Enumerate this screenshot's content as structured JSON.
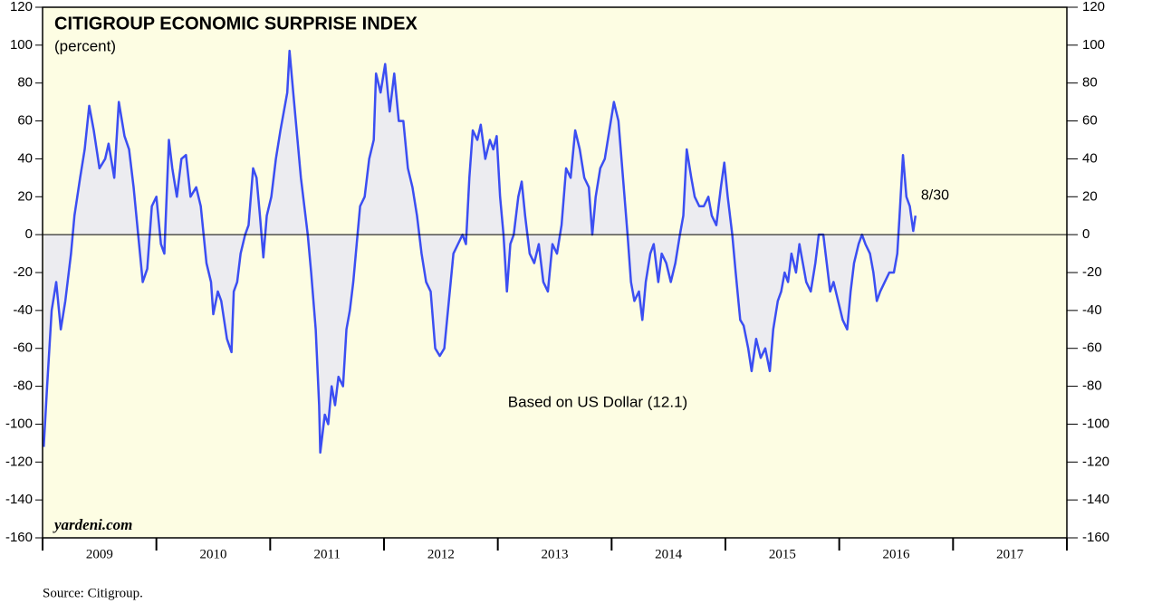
{
  "chart_data": {
    "type": "area",
    "title": "CITIGROUP ECONOMIC SURPRISE INDEX",
    "subtitle": "(percent)",
    "note": "Based on US Dollar (12.1)",
    "watermark": "yardeni.com",
    "source": "Source: Citigroup.",
    "end_label": "8/30",
    "color": "#3b4ef2",
    "fill_color": "#ececf0",
    "background": "#fdfde3",
    "xlim": [
      2009,
      2018
    ],
    "xticks": [
      2009,
      2010,
      2011,
      2012,
      2013,
      2014,
      2015,
      2016,
      2017
    ],
    "ylim": [
      -160,
      120
    ],
    "yticks": [
      120,
      100,
      80,
      60,
      40,
      20,
      0,
      -20,
      -40,
      -60,
      -80,
      -100,
      -120,
      -140,
      -160
    ],
    "x": [
      2009.01,
      2009.04,
      2009.08,
      2009.12,
      2009.16,
      2009.2,
      2009.25,
      2009.28,
      2009.33,
      2009.37,
      2009.41,
      2009.45,
      2009.5,
      2009.55,
      2009.58,
      2009.63,
      2009.67,
      2009.72,
      2009.76,
      2009.8,
      2009.84,
      2009.88,
      2009.92,
      2009.96,
      2010.0,
      2010.04,
      2010.07,
      2010.11,
      2010.14,
      2010.18,
      2010.22,
      2010.26,
      2010.3,
      2010.35,
      2010.39,
      2010.44,
      2010.48,
      2010.5,
      2010.54,
      2010.57,
      2010.62,
      2010.66,
      2010.68,
      2010.71,
      2010.74,
      2010.78,
      2010.81,
      2010.85,
      2010.88,
      2010.91,
      2010.94,
      2010.97,
      2011.01,
      2011.05,
      2011.09,
      2011.12,
      2011.15,
      2011.17,
      2011.21,
      2011.24,
      2011.27,
      2011.3,
      2011.33,
      2011.36,
      2011.4,
      2011.43,
      2011.44,
      2011.48,
      2011.51,
      2011.54,
      2011.57,
      2011.6,
      2011.64,
      2011.67,
      2011.7,
      2011.73,
      2011.76,
      2011.79,
      2011.83,
      2011.87,
      2011.91,
      2011.93,
      2011.97,
      2012.01,
      2012.05,
      2012.09,
      2012.13,
      2012.17,
      2012.21,
      2012.25,
      2012.29,
      2012.33,
      2012.37,
      2012.41,
      2012.45,
      2012.49,
      2012.53,
      2012.57,
      2012.61,
      2012.65,
      2012.69,
      2012.72,
      2012.75,
      2012.78,
      2012.82,
      2012.85,
      2012.89,
      2012.93,
      2012.96,
      2012.99,
      2013.02,
      2013.05,
      2013.08,
      2013.11,
      2013.14,
      2013.18,
      2013.21,
      2013.24,
      2013.28,
      2013.32,
      2013.36,
      2013.4,
      2013.44,
      2013.48,
      2013.52,
      2013.56,
      2013.6,
      2013.64,
      2013.68,
      2013.72,
      2013.76,
      2013.8,
      2013.83,
      2013.86,
      2013.9,
      2013.94,
      2013.98,
      2014.02,
      2014.06,
      2014.1,
      2014.14,
      2014.17,
      2014.2,
      2014.24,
      2014.27,
      2014.3,
      2014.34,
      2014.37,
      2014.41,
      2014.44,
      2014.48,
      2014.52,
      2014.56,
      2014.6,
      2014.63,
      2014.66,
      2014.7,
      2014.73,
      2014.77,
      2014.81,
      2014.85,
      2014.88,
      2014.92,
      2014.96,
      2014.99,
      2015.02,
      2015.06,
      2015.09,
      2015.13,
      2015.16,
      2015.2,
      2015.23,
      2015.27,
      2015.31,
      2015.35,
      2015.39,
      2015.42,
      2015.46,
      2015.49,
      2015.52,
      2015.55,
      2015.58,
      2015.62,
      2015.65,
      2015.68,
      2015.71,
      2015.75,
      2015.79,
      2015.82,
      2015.86,
      2015.89,
      2015.92,
      2015.95,
      2015.99,
      2016.03,
      2016.07,
      2016.1,
      2016.13,
      2016.17,
      2016.2,
      2016.23,
      2016.27,
      2016.3,
      2016.33,
      2016.36,
      2016.4,
      2016.44,
      2016.48,
      2016.51,
      2016.53,
      2016.56,
      2016.59,
      2016.62,
      2016.65,
      2016.67
    ],
    "values": [
      -112,
      -80,
      -40,
      -25,
      -50,
      -35,
      -10,
      10,
      30,
      45,
      68,
      55,
      35,
      40,
      48,
      30,
      70,
      52,
      45,
      25,
      0,
      -25,
      -18,
      15,
      20,
      -5,
      -10,
      50,
      35,
      20,
      40,
      42,
      20,
      25,
      15,
      -15,
      -25,
      -42,
      -30,
      -35,
      -55,
      -62,
      -30,
      -25,
      -10,
      0,
      5,
      35,
      30,
      10,
      -12,
      10,
      20,
      40,
      55,
      65,
      75,
      97,
      70,
      50,
      30,
      15,
      0,
      -20,
      -50,
      -90,
      -115,
      -95,
      -100,
      -80,
      -90,
      -75,
      -80,
      -50,
      -40,
      -25,
      -5,
      15,
      20,
      40,
      50,
      85,
      75,
      90,
      65,
      85,
      60,
      60,
      35,
      25,
      10,
      -10,
      -25,
      -30,
      -60,
      -64,
      -60,
      -35,
      -10,
      -5,
      0,
      -5,
      30,
      55,
      50,
      58,
      40,
      50,
      45,
      52,
      20,
      0,
      -30,
      -5,
      0,
      20,
      28,
      10,
      -10,
      -15,
      -5,
      -25,
      -30,
      -5,
      -10,
      5,
      35,
      30,
      55,
      45,
      30,
      25,
      0,
      20,
      35,
      40,
      55,
      70,
      60,
      30,
      0,
      -25,
      -35,
      -30,
      -45,
      -25,
      -10,
      -5,
      -25,
      -10,
      -15,
      -25,
      -15,
      0,
      10,
      45,
      30,
      20,
      15,
      15,
      20,
      10,
      5,
      25,
      38,
      20,
      0,
      -20,
      -45,
      -48,
      -60,
      -72,
      -55,
      -65,
      -60,
      -72,
      -50,
      -35,
      -30,
      -20,
      -25,
      -10,
      -20,
      -5,
      -15,
      -25,
      -30,
      -15,
      0,
      0,
      -15,
      -30,
      -25,
      -35,
      -45,
      -50,
      -30,
      -15,
      -5,
      0,
      -5,
      -10,
      -20,
      -35,
      -30,
      -25,
      -20,
      -20,
      -10,
      10,
      42,
      20,
      15,
      2,
      10
    ]
  }
}
